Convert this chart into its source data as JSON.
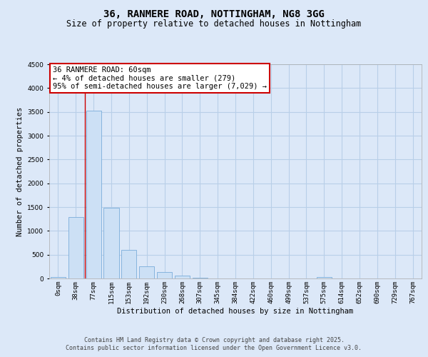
{
  "title_line1": "36, RANMERE ROAD, NOTTINGHAM, NG8 3GG",
  "title_line2": "Size of property relative to detached houses in Nottingham",
  "xlabel": "Distribution of detached houses by size in Nottingham",
  "ylabel": "Number of detached properties",
  "categories": [
    "0sqm",
    "38sqm",
    "77sqm",
    "115sqm",
    "153sqm",
    "192sqm",
    "230sqm",
    "268sqm",
    "307sqm",
    "345sqm",
    "384sqm",
    "422sqm",
    "460sqm",
    "499sqm",
    "537sqm",
    "575sqm",
    "614sqm",
    "652sqm",
    "690sqm",
    "729sqm",
    "767sqm"
  ],
  "values": [
    30,
    1285,
    3530,
    1490,
    600,
    250,
    130,
    60,
    10,
    5,
    2,
    0,
    0,
    0,
    0,
    30,
    0,
    0,
    0,
    0,
    0
  ],
  "bar_color": "#cce0f5",
  "bar_edge_color": "#7aadda",
  "annotation_box_color": "#cc0000",
  "annotation_text": "36 RANMERE ROAD: 60sqm\n← 4% of detached houses are smaller (279)\n95% of semi-detached houses are larger (7,029) →",
  "red_line_x": 1.5,
  "ylim": [
    0,
    4500
  ],
  "yticks": [
    0,
    500,
    1000,
    1500,
    2000,
    2500,
    3000,
    3500,
    4000,
    4500
  ],
  "background_color": "#dce8f8",
  "plot_bg_color": "#dce8f8",
  "grid_color": "#b8cfe8",
  "footer_line1": "Contains HM Land Registry data © Crown copyright and database right 2025.",
  "footer_line2": "Contains public sector information licensed under the Open Government Licence v3.0.",
  "title_fontsize": 10,
  "subtitle_fontsize": 8.5,
  "axis_label_fontsize": 7.5,
  "tick_fontsize": 6.5,
  "annotation_fontsize": 7.5,
  "footer_fontsize": 6
}
